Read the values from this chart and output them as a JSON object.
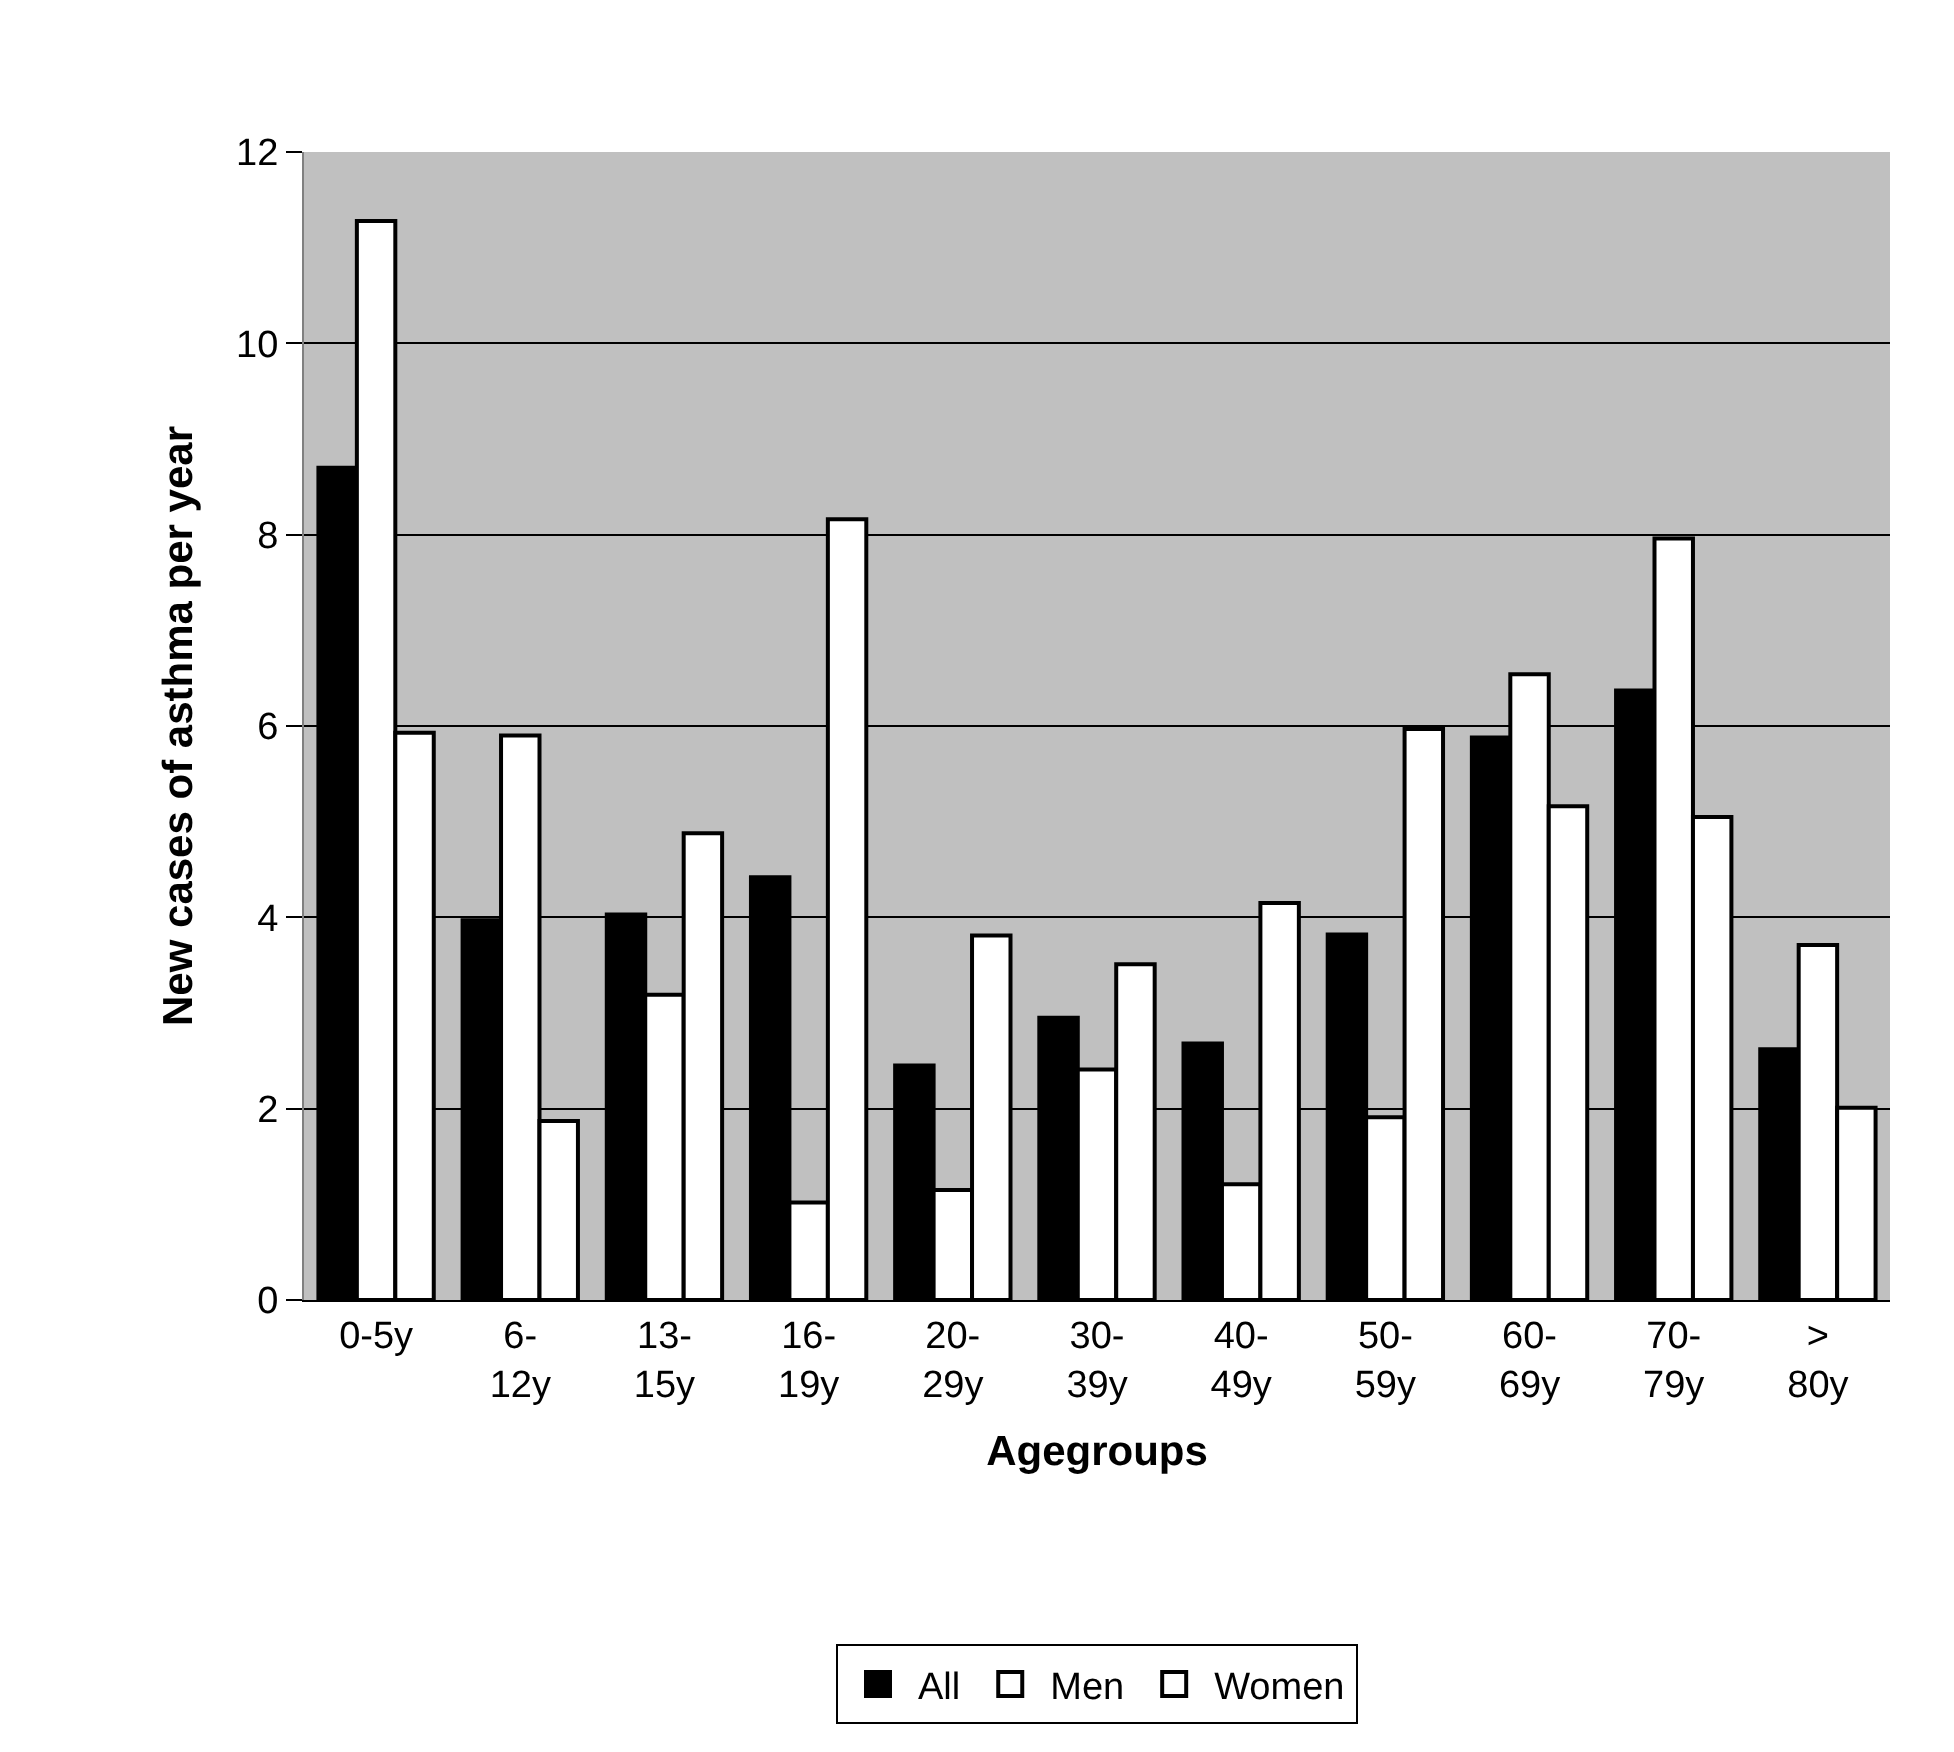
{
  "chart_data": {
    "type": "bar",
    "xlabel": "Agegroups",
    "ylabel": "New cases of asthma per year",
    "categories": [
      "0-5y",
      "6-12y",
      "13-15y",
      "16-19y",
      "20-29y",
      "30-39y",
      "40-49y",
      "50-59y",
      "60-69y",
      "70-79y",
      "> 80y"
    ],
    "series": [
      {
        "name": "All",
        "color": "#000000",
        "values": [
          8.7,
          3.97,
          4.03,
          4.42,
          2.45,
          2.95,
          2.68,
          3.82,
          5.88,
          6.37,
          2.62
        ]
      },
      {
        "name": "Men",
        "color": "#ffffff",
        "values": [
          11.28,
          5.9,
          3.19,
          1.02,
          1.15,
          2.41,
          1.21,
          1.91,
          6.54,
          7.96,
          3.71
        ]
      },
      {
        "name": "Women",
        "color": "#ffffff",
        "values": [
          5.93,
          1.87,
          4.88,
          8.16,
          3.81,
          3.51,
          4.15,
          5.97,
          5.16,
          5.05,
          2.01
        ]
      }
    ],
    "ylim": [
      0,
      12
    ],
    "yticks": [
      0,
      2,
      4,
      6,
      8,
      10,
      12
    ],
    "grid": "y",
    "legend": "bottom"
  }
}
